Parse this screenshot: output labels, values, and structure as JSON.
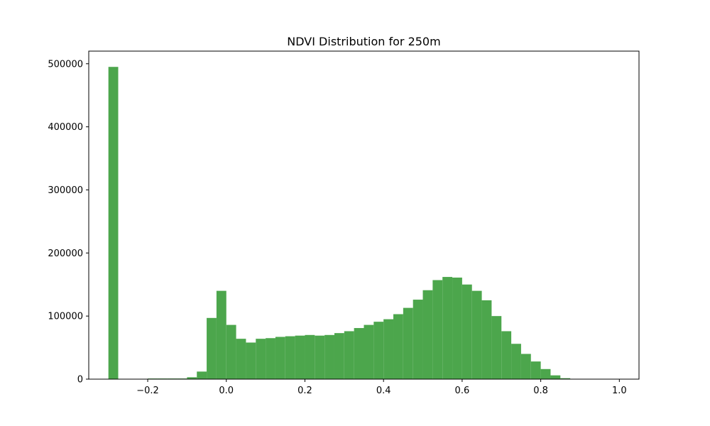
{
  "chart_data": {
    "type": "bar",
    "title": "NDVI Distribution for 250m",
    "xlabel": "",
    "ylabel": "",
    "xlim": [
      -0.35,
      1.05
    ],
    "ylim": [
      0,
      520000
    ],
    "grid": false,
    "bar_color": "#4ca64c",
    "bin_width": 0.025,
    "bins": [
      {
        "x0": -0.3,
        "value": 495000
      },
      {
        "x0": -0.2,
        "value": 1000
      },
      {
        "x0": -0.175,
        "value": 1000
      },
      {
        "x0": -0.15,
        "value": 1000
      },
      {
        "x0": -0.125,
        "value": 1000
      },
      {
        "x0": -0.1,
        "value": 3000
      },
      {
        "x0": -0.075,
        "value": 12000
      },
      {
        "x0": -0.05,
        "value": 97000
      },
      {
        "x0": -0.025,
        "value": 140000
      },
      {
        "x0": 0.0,
        "value": 86000
      },
      {
        "x0": 0.025,
        "value": 64000
      },
      {
        "x0": 0.05,
        "value": 58000
      },
      {
        "x0": 0.075,
        "value": 64000
      },
      {
        "x0": 0.1,
        "value": 65000
      },
      {
        "x0": 0.125,
        "value": 67000
      },
      {
        "x0": 0.15,
        "value": 68000
      },
      {
        "x0": 0.175,
        "value": 69000
      },
      {
        "x0": 0.2,
        "value": 70000
      },
      {
        "x0": 0.225,
        "value": 69000
      },
      {
        "x0": 0.25,
        "value": 70000
      },
      {
        "x0": 0.275,
        "value": 73000
      },
      {
        "x0": 0.3,
        "value": 76000
      },
      {
        "x0": 0.325,
        "value": 81000
      },
      {
        "x0": 0.35,
        "value": 86000
      },
      {
        "x0": 0.375,
        "value": 91000
      },
      {
        "x0": 0.4,
        "value": 95000
      },
      {
        "x0": 0.425,
        "value": 103000
      },
      {
        "x0": 0.45,
        "value": 113000
      },
      {
        "x0": 0.475,
        "value": 126000
      },
      {
        "x0": 0.5,
        "value": 141000
      },
      {
        "x0": 0.525,
        "value": 157000
      },
      {
        "x0": 0.55,
        "value": 162000
      },
      {
        "x0": 0.575,
        "value": 161000
      },
      {
        "x0": 0.6,
        "value": 150000
      },
      {
        "x0": 0.625,
        "value": 140000
      },
      {
        "x0": 0.65,
        "value": 125000
      },
      {
        "x0": 0.675,
        "value": 100000
      },
      {
        "x0": 0.7,
        "value": 76000
      },
      {
        "x0": 0.725,
        "value": 56000
      },
      {
        "x0": 0.75,
        "value": 40000
      },
      {
        "x0": 0.775,
        "value": 28000
      },
      {
        "x0": 0.8,
        "value": 16000
      },
      {
        "x0": 0.825,
        "value": 6000
      },
      {
        "x0": 0.85,
        "value": 1500
      }
    ],
    "x_ticks": [
      {
        "value": -0.2,
        "label": "−0.2"
      },
      {
        "value": 0.0,
        "label": "0.0"
      },
      {
        "value": 0.2,
        "label": "0.2"
      },
      {
        "value": 0.4,
        "label": "0.4"
      },
      {
        "value": 0.6,
        "label": "0.6"
      },
      {
        "value": 0.8,
        "label": "0.8"
      },
      {
        "value": 1.0,
        "label": "1.0"
      }
    ],
    "y_ticks": [
      {
        "value": 0,
        "label": "0"
      },
      {
        "value": 100000,
        "label": "100000"
      },
      {
        "value": 200000,
        "label": "200000"
      },
      {
        "value": 300000,
        "label": "300000"
      },
      {
        "value": 400000,
        "label": "400000"
      },
      {
        "value": 500000,
        "label": "500000"
      }
    ]
  }
}
